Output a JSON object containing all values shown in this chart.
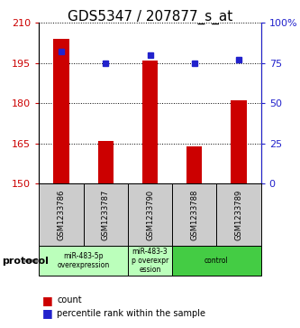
{
  "title": "GDS5347 / 207877_s_at",
  "samples": [
    "GSM1233786",
    "GSM1233787",
    "GSM1233790",
    "GSM1233788",
    "GSM1233789"
  ],
  "count_values": [
    204,
    166,
    196,
    164,
    181
  ],
  "percentile_values": [
    82,
    75,
    80,
    75,
    77
  ],
  "ylim_left": [
    150,
    210
  ],
  "ylim_right": [
    0,
    100
  ],
  "yticks_left": [
    150,
    165,
    180,
    195,
    210
  ],
  "yticks_right": [
    0,
    25,
    50,
    75,
    100
  ],
  "bar_color": "#cc0000",
  "dot_color": "#2222cc",
  "bar_width": 0.35,
  "title_fontsize": 11,
  "axis_label_color_left": "#cc0000",
  "axis_label_color_right": "#2222cc",
  "sample_box_color": "#cccccc",
  "background_color": "#ffffff",
  "groups": [
    {
      "start": 0,
      "end": 1,
      "label": "miR-483-5p\noverexpression",
      "color": "#bbffbb"
    },
    {
      "start": 2,
      "end": 2,
      "label": "miR-483-3\np overexpr\nession",
      "color": "#bbffbb"
    },
    {
      "start": 3,
      "end": 4,
      "label": "control",
      "color": "#44cc44"
    }
  ],
  "protocol_label": "protocol",
  "legend_count_label": "count",
  "legend_percentile_label": "percentile rank within the sample"
}
